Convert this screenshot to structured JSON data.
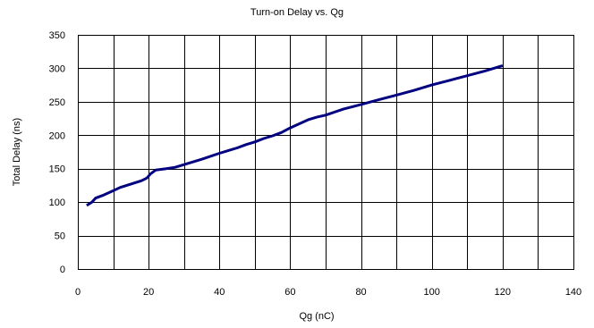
{
  "chart_data": {
    "type": "line",
    "title": "Turn-on Delay vs. Qg",
    "xlabel": "Qg (nC)",
    "ylabel": "Total Delay (ns)",
    "xlim": [
      0,
      140
    ],
    "ylim": [
      0,
      350
    ],
    "x_ticks": [
      "0",
      "20",
      "40",
      "60",
      "80",
      "100",
      "120",
      "140"
    ],
    "y_ticks": [
      "0",
      "50",
      "100",
      "150",
      "200",
      "250",
      "300",
      "350"
    ],
    "grid": true,
    "series": [
      {
        "color": "#000080",
        "points": [
          [
            2.5,
            95
          ],
          [
            4,
            100
          ],
          [
            5,
            106
          ],
          [
            7,
            110
          ],
          [
            10,
            117
          ],
          [
            12,
            122
          ],
          [
            15,
            127
          ],
          [
            18,
            132
          ],
          [
            19.5,
            136
          ],
          [
            20.5,
            142
          ],
          [
            22,
            148
          ],
          [
            25,
            150
          ],
          [
            27.5,
            152
          ],
          [
            30,
            156
          ],
          [
            35,
            164
          ],
          [
            40,
            173
          ],
          [
            45,
            181
          ],
          [
            47.5,
            186
          ],
          [
            50,
            190
          ],
          [
            52.5,
            195
          ],
          [
            55,
            199
          ],
          [
            57.5,
            204
          ],
          [
            60,
            211
          ],
          [
            62.5,
            217
          ],
          [
            65,
            223
          ],
          [
            67.5,
            227
          ],
          [
            70,
            230
          ],
          [
            75,
            239
          ],
          [
            80,
            246
          ],
          [
            85,
            253
          ],
          [
            90,
            260
          ],
          [
            95,
            267
          ],
          [
            100,
            275
          ],
          [
            105,
            282
          ],
          [
            110,
            289
          ],
          [
            115,
            296
          ],
          [
            120,
            304
          ]
        ]
      }
    ]
  }
}
